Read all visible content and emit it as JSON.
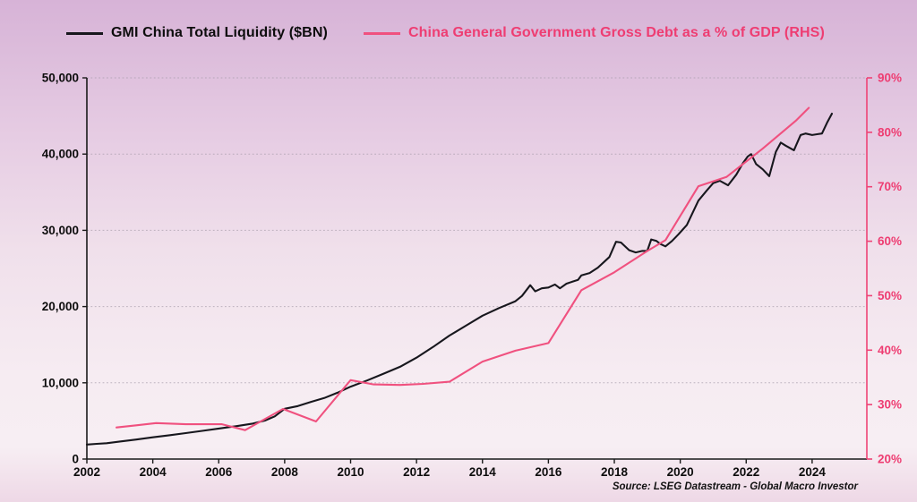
{
  "legend": {
    "series1": {
      "label": "GMI China Total Liquidity ($BN)",
      "color": "#17171d"
    },
    "series2": {
      "label": "China General Government Gross Debt as a % of GDP (RHS)",
      "color": "#ee3d72"
    }
  },
  "source": "Source: LSEG Datastream - Global Macro Investor",
  "colors": {
    "black_line": "#17171d",
    "pink_line": "#f0517f",
    "pink_axis": "#ee4376",
    "pink_text": "#ee3d72",
    "black_axis": "#1a1a1a",
    "black_text": "#0d0d0d",
    "gridline": "#a79dab"
  },
  "chart_data": {
    "type": "line",
    "title": "",
    "legend_position": "top",
    "grid": "horizontal-dotted",
    "x_axis": {
      "range": [
        2002,
        2025.66
      ],
      "tick_values": [
        2002,
        2004,
        2006,
        2008,
        2010,
        2012,
        2014,
        2016,
        2018,
        2020,
        2022,
        2024
      ],
      "tick_labels": [
        "2002",
        "2004",
        "2006",
        "2008",
        "2010",
        "2012",
        "2014",
        "2016",
        "2018",
        "2020",
        "2022",
        "2024"
      ]
    },
    "left_axis": {
      "label": "GMI China Total Liquidity ($BN)",
      "range": [
        0,
        50000
      ],
      "tick_values": [
        0,
        10000,
        20000,
        30000,
        40000,
        50000
      ],
      "tick_labels": [
        "0",
        "10,000",
        "20,000",
        "30,000",
        "40,000",
        "50,000"
      ]
    },
    "right_axis": {
      "label": "China General Government Gross Debt as a % of GDP (RHS)",
      "range": [
        20,
        90
      ],
      "tick_values": [
        20,
        30,
        40,
        50,
        60,
        70,
        80,
        90
      ],
      "tick_labels": [
        "20%",
        "30%",
        "40%",
        "50%",
        "60%",
        "70%",
        "80%",
        "90%"
      ]
    },
    "series": [
      {
        "name": "GMI China Total Liquidity ($BN)",
        "axis": "left",
        "color": "#17171d",
        "points": [
          [
            2002.0,
            1900
          ],
          [
            2002.3,
            2000
          ],
          [
            2002.6,
            2080
          ],
          [
            2003.0,
            2300
          ],
          [
            2003.5,
            2560
          ],
          [
            2004.0,
            2850
          ],
          [
            2004.5,
            3120
          ],
          [
            2005.0,
            3400
          ],
          [
            2005.5,
            3700
          ],
          [
            2006.0,
            4000
          ],
          [
            2006.5,
            4300
          ],
          [
            2007.0,
            4620
          ],
          [
            2007.4,
            5050
          ],
          [
            2007.7,
            5600
          ],
          [
            2008.0,
            6600
          ],
          [
            2008.4,
            6950
          ],
          [
            2008.8,
            7500
          ],
          [
            2009.2,
            8000
          ],
          [
            2009.6,
            8700
          ],
          [
            2010.0,
            9500
          ],
          [
            2010.5,
            10300
          ],
          [
            2011.0,
            11200
          ],
          [
            2011.5,
            12100
          ],
          [
            2012.0,
            13300
          ],
          [
            2012.5,
            14700
          ],
          [
            2013.0,
            16200
          ],
          [
            2013.5,
            17500
          ],
          [
            2014.0,
            18800
          ],
          [
            2014.5,
            19800
          ],
          [
            2015.0,
            20700
          ],
          [
            2015.2,
            21400
          ],
          [
            2015.45,
            22800
          ],
          [
            2015.6,
            22000
          ],
          [
            2015.8,
            22400
          ],
          [
            2016.0,
            22500
          ],
          [
            2016.2,
            22900
          ],
          [
            2016.35,
            22400
          ],
          [
            2016.55,
            23000
          ],
          [
            2016.75,
            23300
          ],
          [
            2016.9,
            23500
          ],
          [
            2017.0,
            24100
          ],
          [
            2017.25,
            24400
          ],
          [
            2017.5,
            25100
          ],
          [
            2017.7,
            25900
          ],
          [
            2017.85,
            26500
          ],
          [
            2018.05,
            28500
          ],
          [
            2018.2,
            28400
          ],
          [
            2018.45,
            27400
          ],
          [
            2018.65,
            27100
          ],
          [
            2018.85,
            27300
          ],
          [
            2019.0,
            27300
          ],
          [
            2019.12,
            28800
          ],
          [
            2019.28,
            28600
          ],
          [
            2019.4,
            28200
          ],
          [
            2019.55,
            27900
          ],
          [
            2019.75,
            28600
          ],
          [
            2019.95,
            29500
          ],
          [
            2020.2,
            30700
          ],
          [
            2020.55,
            33900
          ],
          [
            2020.8,
            35200
          ],
          [
            2021.0,
            36200
          ],
          [
            2021.2,
            36500
          ],
          [
            2021.45,
            35900
          ],
          [
            2021.7,
            37300
          ],
          [
            2021.9,
            38800
          ],
          [
            2022.05,
            39700
          ],
          [
            2022.15,
            40000
          ],
          [
            2022.3,
            38700
          ],
          [
            2022.5,
            38000
          ],
          [
            2022.7,
            37100
          ],
          [
            2022.9,
            40300
          ],
          [
            2023.05,
            41500
          ],
          [
            2023.2,
            41100
          ],
          [
            2023.45,
            40500
          ],
          [
            2023.65,
            42500
          ],
          [
            2023.8,
            42700
          ],
          [
            2024.0,
            42500
          ],
          [
            2024.15,
            42600
          ],
          [
            2024.3,
            42700
          ],
          [
            2024.45,
            44100
          ],
          [
            2024.6,
            45300
          ]
        ]
      },
      {
        "name": "China General Government Gross Debt as a % of GDP (RHS)",
        "axis": "right",
        "color": "#f0517f",
        "points": [
          [
            2002.9,
            25.8
          ],
          [
            2003.5,
            26.2
          ],
          [
            2004.1,
            26.6
          ],
          [
            2005.0,
            26.4
          ],
          [
            2006.1,
            26.4
          ],
          [
            2006.8,
            25.3
          ],
          [
            2007.95,
            29.2
          ],
          [
            2008.95,
            26.9
          ],
          [
            2010.0,
            34.5
          ],
          [
            2010.7,
            33.7
          ],
          [
            2011.5,
            33.6
          ],
          [
            2012.2,
            33.8
          ],
          [
            2013.0,
            34.2
          ],
          [
            2014.0,
            37.9
          ],
          [
            2015.0,
            39.9
          ],
          [
            2016.0,
            41.3
          ],
          [
            2017.0,
            51.0
          ],
          [
            2018.0,
            54.3
          ],
          [
            2019.0,
            58.2
          ],
          [
            2019.55,
            60.2
          ],
          [
            2020.55,
            70.1
          ],
          [
            2021.4,
            71.8
          ],
          [
            2022.5,
            77.0
          ],
          [
            2023.5,
            82.1
          ],
          [
            2023.9,
            84.5
          ]
        ]
      }
    ]
  }
}
